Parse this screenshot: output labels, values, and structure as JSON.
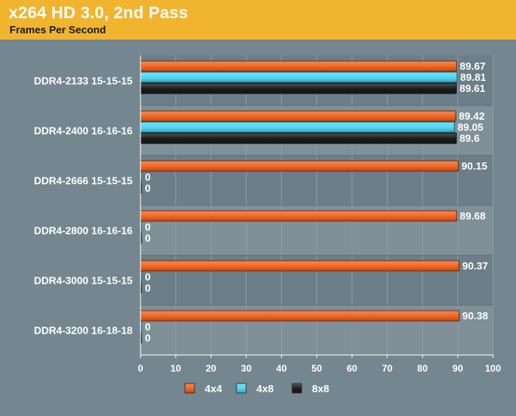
{
  "colors": {
    "header_bg": "#f1b42f",
    "page_bg": "#74868f",
    "plot_band_dark": "#6c7e87",
    "plot_band_light": "#7f9099",
    "grid": "#8d9ea6",
    "axis": "#ffffff"
  },
  "chart_data": {
    "type": "bar",
    "orientation": "horizontal",
    "title": "x264 HD 3.0, 2nd Pass",
    "subtitle": "Frames Per Second",
    "categories": [
      "DDR4-2133 15-15-15",
      "DDR4-2400 16-16-16",
      "DDR4-2666 15-15-15",
      "DDR4-2800 16-16-16",
      "DDR4-3000 15-15-15",
      "DDR4-3200 16-18-18"
    ],
    "series": [
      {
        "name": "4x4",
        "color": "#f26522",
        "values": [
          89.67,
          89.42,
          90.15,
          89.68,
          90.37,
          90.38
        ]
      },
      {
        "name": "4x8",
        "color": "#4ed6f2",
        "values": [
          89.81,
          89.05,
          0,
          0,
          0,
          0
        ]
      },
      {
        "name": "8x8",
        "color": "#1c1c1c",
        "values": [
          89.61,
          89.6,
          0,
          0,
          0,
          0
        ]
      }
    ],
    "value_labels": [
      [
        "89.67",
        "89.81",
        "89.61"
      ],
      [
        "89.42",
        "89.05",
        "89.6"
      ],
      [
        "90.15",
        "0",
        "0"
      ],
      [
        "89.68",
        "0",
        "0"
      ],
      [
        "90.37",
        "0",
        "0"
      ],
      [
        "90.38",
        "0",
        "0"
      ]
    ],
    "xlim": [
      0,
      100
    ],
    "xticks": [
      "0",
      "10",
      "20",
      "30",
      "40",
      "50",
      "60",
      "70",
      "80",
      "90",
      "100"
    ],
    "grid": true,
    "legend_position": "bottom-center"
  }
}
